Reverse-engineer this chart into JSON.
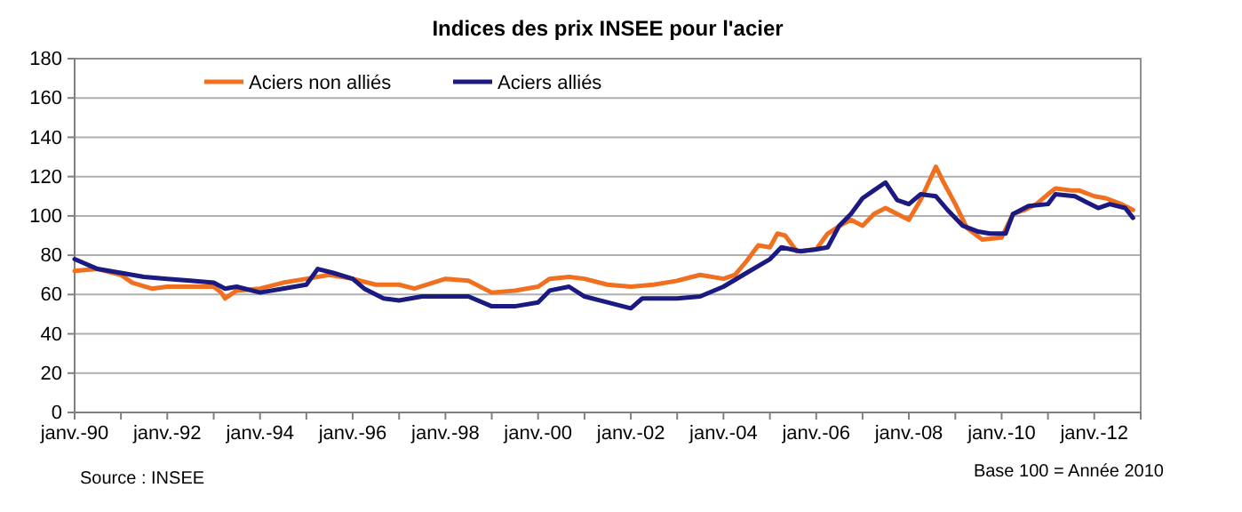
{
  "chart_data": {
    "type": "line",
    "title": "Indices des prix INSEE pour l'acier",
    "xlim": [
      "1990-01",
      "2013-01"
    ],
    "ylim": [
      0,
      180
    ],
    "yticks": [
      0,
      20,
      40,
      60,
      80,
      100,
      120,
      140,
      160,
      180
    ],
    "xticks": [
      {
        "value": "1990-01",
        "label": "janv.-90"
      },
      {
        "value": "1991-01",
        "label": null
      },
      {
        "value": "1992-01",
        "label": "janv.-92"
      },
      {
        "value": "1993-01",
        "label": null
      },
      {
        "value": "1994-01",
        "label": "janv.-94"
      },
      {
        "value": "1995-01",
        "label": null
      },
      {
        "value": "1996-01",
        "label": "janv.-96"
      },
      {
        "value": "1997-01",
        "label": null
      },
      {
        "value": "1998-01",
        "label": "janv.-98"
      },
      {
        "value": "1999-01",
        "label": null
      },
      {
        "value": "2000-01",
        "label": "janv.-00"
      },
      {
        "value": "2001-01",
        "label": null
      },
      {
        "value": "2002-01",
        "label": "janv.-02"
      },
      {
        "value": "2003-01",
        "label": null
      },
      {
        "value": "2004-01",
        "label": "janv.-04"
      },
      {
        "value": "2005-01",
        "label": null
      },
      {
        "value": "2006-01",
        "label": "janv.-06"
      },
      {
        "value": "2007-01",
        "label": null
      },
      {
        "value": "2008-01",
        "label": "janv.-08"
      },
      {
        "value": "2009-01",
        "label": null
      },
      {
        "value": "2010-01",
        "label": "janv.-10"
      },
      {
        "value": "2011-01",
        "label": null
      },
      {
        "value": "2012-01",
        "label": "janv.-12"
      },
      {
        "value": "2013-01",
        "label": null
      }
    ],
    "grid": "y",
    "legend": "top",
    "marker": "none",
    "line_style": "solid",
    "annotations": [
      "Source : INSEE",
      "Base 100 = Année 2010"
    ],
    "series": [
      {
        "name": "Aciers non alliés",
        "color": "#f07020",
        "x": [
          "1990-01",
          "1990-07",
          "1991-01",
          "1991-04",
          "1991-09",
          "1992-01",
          "1993-01",
          "1993-03",
          "1993-04",
          "1993-07",
          "1994-01",
          "1994-07",
          "1995-01",
          "1995-07",
          "1996-01",
          "1996-07",
          "1997-01",
          "1997-05",
          "1998-01",
          "1998-07",
          "1999-01",
          "1999-07",
          "2000-01",
          "2000-04",
          "2000-09",
          "2001-01",
          "2001-07",
          "2002-01",
          "2002-07",
          "2003-01",
          "2003-07",
          "2004-01",
          "2004-04",
          "2004-07",
          "2004-10",
          "2005-01",
          "2005-03",
          "2005-05",
          "2005-08",
          "2006-01",
          "2006-04",
          "2006-08",
          "2006-10",
          "2007-01",
          "2007-04",
          "2007-07",
          "2007-10",
          "2008-01",
          "2008-04",
          "2008-08",
          "2008-10",
          "2009-01",
          "2009-04",
          "2009-08",
          "2010-01",
          "2010-04",
          "2010-07",
          "2010-10",
          "2011-01",
          "2011-03",
          "2011-07",
          "2011-09",
          "2012-01",
          "2012-04",
          "2012-08",
          "2012-11"
        ],
        "values": [
          72,
          73,
          70,
          66,
          63,
          64,
          64,
          61,
          58,
          62,
          63,
          66,
          68,
          70,
          68,
          65,
          65,
          63,
          68,
          67,
          61,
          62,
          64,
          68,
          69,
          68,
          65,
          64,
          65,
          67,
          70,
          68,
          70,
          77,
          85,
          84,
          91,
          90,
          82,
          83,
          91,
          96,
          98,
          95,
          101,
          104,
          101,
          98,
          108,
          125,
          117,
          106,
          94,
          88,
          89,
          101,
          103,
          106,
          111,
          114,
          113,
          113,
          110,
          109,
          106,
          103
        ]
      },
      {
        "name": "Aciers alliés",
        "color": "#1a1a80",
        "x": [
          "1990-01",
          "1990-07",
          "1991-01",
          "1991-07",
          "1992-01",
          "1992-07",
          "1993-01",
          "1993-04",
          "1993-07",
          "1994-01",
          "1994-07",
          "1995-01",
          "1995-04",
          "1995-08",
          "1996-01",
          "1996-04",
          "1996-09",
          "1997-01",
          "1997-07",
          "1998-01",
          "1998-07",
          "1999-01",
          "1999-07",
          "2000-01",
          "2000-04",
          "2000-09",
          "2001-01",
          "2001-07",
          "2002-01",
          "2002-04",
          "2003-01",
          "2003-07",
          "2004-01",
          "2004-07",
          "2005-01",
          "2005-04",
          "2005-09",
          "2006-01",
          "2006-04",
          "2006-07",
          "2006-10",
          "2007-01",
          "2007-04",
          "2007-07",
          "2007-10",
          "2008-01",
          "2008-04",
          "2008-08",
          "2008-11",
          "2009-03",
          "2009-07",
          "2009-10",
          "2010-02",
          "2010-04",
          "2010-08",
          "2011-01",
          "2011-03",
          "2011-08",
          "2011-11",
          "2012-02",
          "2012-05",
          "2012-09",
          "2012-11"
        ],
        "values": [
          78,
          73,
          71,
          69,
          68,
          67,
          66,
          63,
          64,
          61,
          63,
          65,
          73,
          71,
          68,
          63,
          58,
          57,
          59,
          59,
          59,
          54,
          54,
          56,
          62,
          64,
          59,
          56,
          53,
          58,
          58,
          59,
          64,
          71,
          78,
          84,
          82,
          83,
          84,
          95,
          101,
          109,
          113,
          117,
          108,
          106,
          111,
          110,
          103,
          95,
          92,
          91,
          91,
          101,
          105,
          106,
          111,
          110,
          107,
          104,
          106,
          104,
          99
        ]
      }
    ]
  }
}
